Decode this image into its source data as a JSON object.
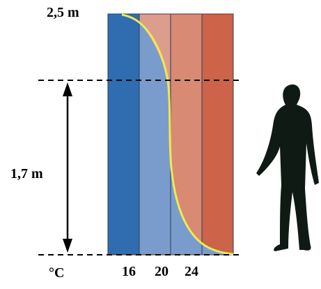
{
  "labels": {
    "top_height": "2,5 m",
    "mid_height": "1,7 m",
    "unit": "°C"
  },
  "scale": [
    "16",
    "20",
    "24"
  ]
}
